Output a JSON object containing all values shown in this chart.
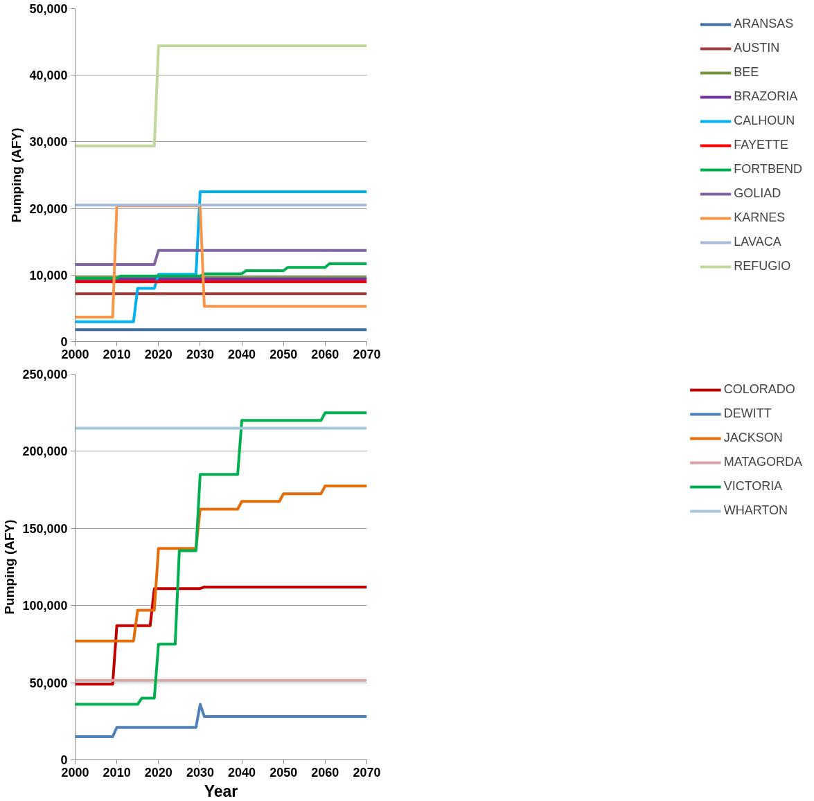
{
  "chart_data": [
    {
      "type": "line",
      "ylabel": "Pumping (AFY)",
      "xlim": [
        2000,
        2070
      ],
      "xticks": [
        2000,
        2010,
        2020,
        2030,
        2040,
        2050,
        2060,
        2070
      ],
      "ylim": [
        0,
        50000
      ],
      "yticks": [
        {
          "value": 0,
          "label": "0"
        },
        {
          "value": 10000,
          "label": "10,000"
        },
        {
          "value": 20000,
          "label": "20,000"
        },
        {
          "value": 30000,
          "label": "30,000"
        },
        {
          "value": 40000,
          "label": "40,000"
        },
        {
          "value": 50000,
          "label": "50,000"
        }
      ],
      "grid": "y",
      "legend": "right",
      "marker": "none",
      "line_style": "solid",
      "series": [
        {
          "name": "ARANSAS",
          "color": "#3e6da0",
          "x": [
            2000,
            2070
          ],
          "values": [
            1800,
            1800
          ]
        },
        {
          "name": "AUSTIN",
          "color": "#9c3f3c",
          "x": [
            2000,
            2070
          ],
          "values": [
            7200,
            7200
          ]
        },
        {
          "name": "BEE",
          "color": "#77933c",
          "x": [
            2000,
            2070
          ],
          "values": [
            9650,
            9650
          ]
        },
        {
          "name": "BRAZORIA",
          "color": "#7030a0",
          "x": [
            2000,
            2070
          ],
          "values": [
            9400,
            9400
          ]
        },
        {
          "name": "CALHOUN",
          "color": "#00b0f0",
          "x": [
            2000,
            2014,
            2015,
            2019,
            2020,
            2029,
            2030,
            2070
          ],
          "values": [
            3000,
            3000,
            8000,
            8000,
            10100,
            10100,
            22500,
            22500
          ]
        },
        {
          "name": "FAYETTE",
          "color": "#ff0000",
          "x": [
            2000,
            2070
          ],
          "values": [
            9000,
            9000
          ]
        },
        {
          "name": "FORTBEND",
          "color": "#00b050",
          "x": [
            2000,
            2010,
            2011,
            2030,
            2031,
            2040,
            2041,
            2050,
            2051,
            2060,
            2061,
            2070
          ],
          "values": [
            9500,
            9500,
            9850,
            9850,
            10200,
            10200,
            10650,
            10650,
            11150,
            11150,
            11700,
            11700
          ]
        },
        {
          "name": "GOLIAD",
          "color": "#8064a2",
          "x": [
            2000,
            2019,
            2020,
            2070
          ],
          "values": [
            11600,
            11600,
            13700,
            13700
          ]
        },
        {
          "name": "KARNES",
          "color": "#f79646",
          "x": [
            2000,
            2009,
            2010,
            2030,
            2031,
            2070
          ],
          "values": [
            3700,
            3700,
            20400,
            20400,
            5300,
            5300
          ]
        },
        {
          "name": "LAVACA",
          "color": "#a6b9d9",
          "x": [
            2000,
            2070
          ],
          "values": [
            20500,
            20500
          ]
        },
        {
          "name": "REFUGIO",
          "color": "#c3d69b",
          "x": [
            2000,
            2019,
            2020,
            2070
          ],
          "values": [
            29400,
            29400,
            44400,
            44400
          ]
        }
      ]
    },
    {
      "type": "line",
      "xlabel": "Year",
      "ylabel": "Pumping (AFY)",
      "xlim": [
        2000,
        2070
      ],
      "xticks": [
        2000,
        2010,
        2020,
        2030,
        2040,
        2050,
        2060,
        2070
      ],
      "ylim": [
        0,
        250000
      ],
      "yticks": [
        {
          "value": 0,
          "label": "0"
        },
        {
          "value": 50000,
          "label": "50,000"
        },
        {
          "value": 100000,
          "label": "100,000"
        },
        {
          "value": 150000,
          "label": "150,000"
        },
        {
          "value": 200000,
          "label": "200,000"
        },
        {
          "value": 250000,
          "label": "250,000"
        }
      ],
      "grid": "y",
      "legend": "right",
      "marker": "none",
      "line_style": "solid",
      "series": [
        {
          "name": "COLORADO",
          "color": "#c00000",
          "x": [
            2000,
            2009,
            2010,
            2018,
            2019,
            2030,
            2031,
            2070
          ],
          "values": [
            49000,
            49000,
            87000,
            87000,
            111000,
            111000,
            112000,
            112000
          ]
        },
        {
          "name": "DEWITT",
          "color": "#4f81bd",
          "x": [
            2000,
            2009,
            2010,
            2029,
            2030,
            2031,
            2070
          ],
          "values": [
            15000,
            15000,
            21000,
            21000,
            36000,
            28000,
            28000
          ]
        },
        {
          "name": "JACKSON",
          "color": "#e46c0a",
          "x": [
            2000,
            2014,
            2015,
            2019,
            2020,
            2029,
            2030,
            2039,
            2040,
            2049,
            2050,
            2059,
            2060,
            2070
          ],
          "values": [
            77000,
            77000,
            97000,
            97000,
            137000,
            137000,
            162500,
            162500,
            167500,
            167500,
            172500,
            172500,
            177500,
            177500
          ]
        },
        {
          "name": "MATAGORDA",
          "color": "#d9a5a3",
          "x": [
            2000,
            2070
          ],
          "values": [
            51500,
            51500
          ]
        },
        {
          "name": "VICTORIA",
          "color": "#00b050",
          "x": [
            2000,
            2015,
            2016,
            2019,
            2020,
            2024,
            2025,
            2029,
            2030,
            2039,
            2040,
            2059,
            2060,
            2070
          ],
          "values": [
            36000,
            36000,
            40000,
            40000,
            75000,
            75000,
            135500,
            135500,
            185000,
            185000,
            220000,
            220000,
            225000,
            225000
          ]
        },
        {
          "name": "WHARTON",
          "color": "#a5c8d8",
          "x": [
            2000,
            2070
          ],
          "values": [
            215000,
            215000
          ]
        }
      ]
    }
  ]
}
